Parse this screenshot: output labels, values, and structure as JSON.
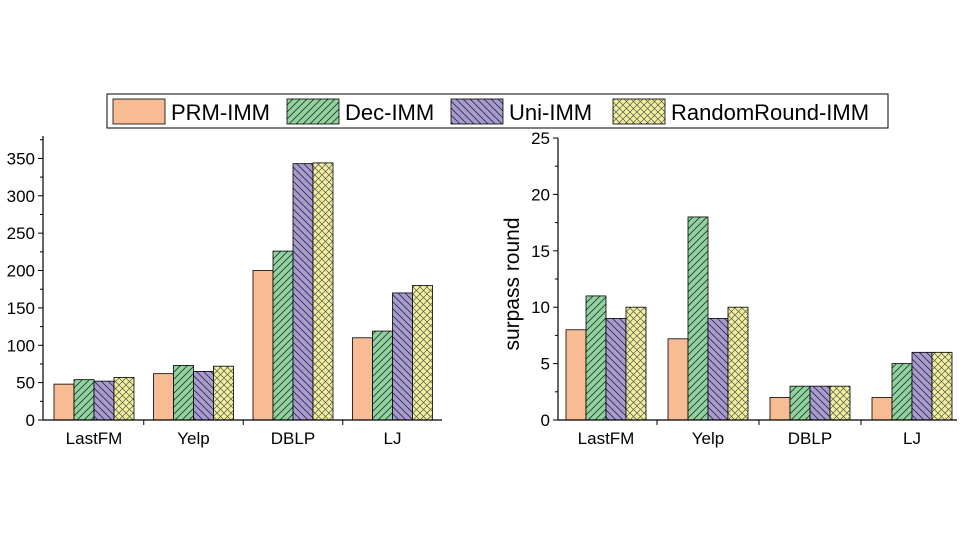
{
  "legend": {
    "placement": "top-center",
    "entries": [
      "PRM-IMM",
      "Dec-IMM",
      "Uni-IMM",
      "RandomRound-IMM"
    ]
  },
  "series_style": [
    {
      "color": "#f8bc94",
      "pattern": "none"
    },
    {
      "color": "#8fd49e",
      "pattern": "diagonal-right"
    },
    {
      "color": "#a89ad2",
      "pattern": "diagonal-left"
    },
    {
      "color": "#f2f09a",
      "pattern": "crosshatch"
    }
  ],
  "chart_data": [
    {
      "type": "bar",
      "categories": [
        "LastFM",
        "Yelp",
        "DBLP",
        "LJ"
      ],
      "xlabel": "",
      "ylabel": "",
      "ylim": [
        0,
        380
      ],
      "yticks": [
        0,
        50,
        100,
        150,
        200,
        250,
        300,
        350
      ],
      "series": [
        {
          "name": "PRM-IMM",
          "values": [
            48,
            62,
            200,
            110
          ]
        },
        {
          "name": "Dec-IMM",
          "values": [
            54,
            73,
            226,
            119
          ]
        },
        {
          "name": "Uni-IMM",
          "values": [
            52,
            65,
            343,
            170
          ]
        },
        {
          "name": "RandomRound-IMM",
          "values": [
            57,
            72,
            344,
            180
          ]
        }
      ]
    },
    {
      "type": "bar",
      "categories": [
        "LastFM",
        "Yelp",
        "DBLP",
        "LJ"
      ],
      "xlabel": "",
      "ylabel": "surpass round",
      "ylim": [
        0,
        25
      ],
      "yticks": [
        0,
        5,
        10,
        15,
        20,
        25
      ],
      "series": [
        {
          "name": "PRM-IMM",
          "values": [
            8,
            7.2,
            2,
            2
          ]
        },
        {
          "name": "Dec-IMM",
          "values": [
            11,
            18,
            3,
            5
          ]
        },
        {
          "name": "Uni-IMM",
          "values": [
            9,
            9,
            3,
            6
          ]
        },
        {
          "name": "RandomRound-IMM",
          "values": [
            10,
            10,
            3,
            6
          ]
        }
      ]
    }
  ]
}
